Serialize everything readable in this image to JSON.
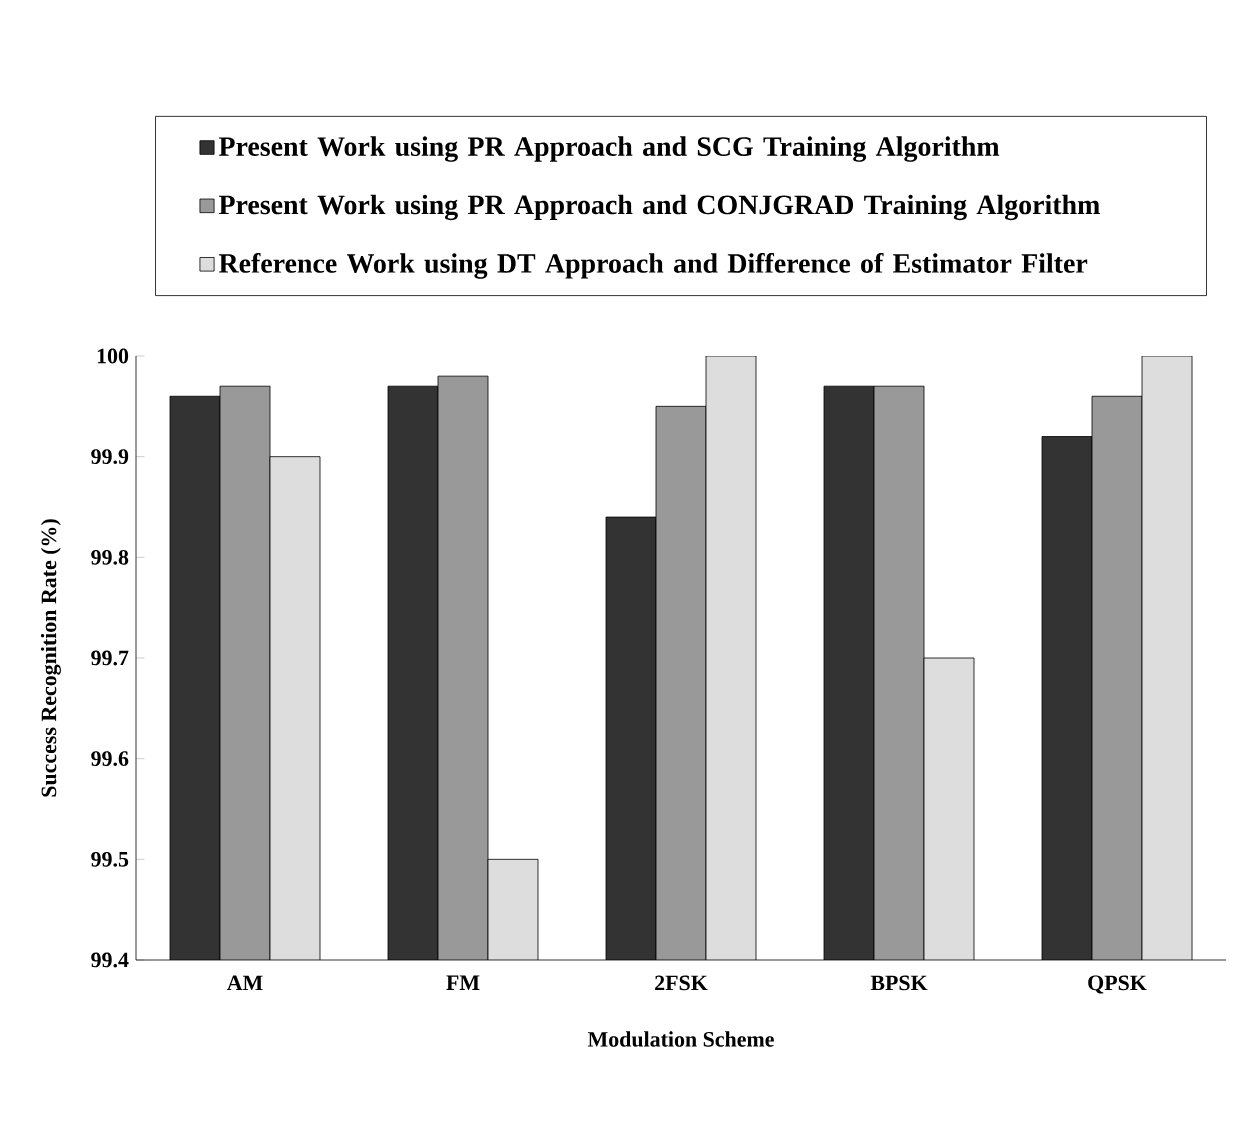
{
  "chart_data": {
    "type": "bar",
    "xlabel": "Modulation Scheme",
    "ylabel": "Success Recognition Rate (%)",
    "categories": [
      "AM",
      "FM",
      "2FSK",
      "BPSK",
      "QPSK"
    ],
    "series": [
      {
        "name": "Present Work using PR Approach and SCG Training Algorithm",
        "color": "#333333",
        "values": [
          99.96,
          99.97,
          99.84,
          99.97,
          99.92
        ]
      },
      {
        "name": "Present Work using PR Approach and CONJGRAD Training Algorithm",
        "color": "#999999",
        "values": [
          99.97,
          99.98,
          99.95,
          99.97,
          99.96
        ]
      },
      {
        "name": "Reference Work using DT Approach  and Difference of Estimator Filter",
        "color": "#dddddd",
        "values": [
          99.9,
          99.5,
          100,
          99.7,
          100
        ]
      }
    ],
    "ylim": [
      99.4,
      100
    ],
    "yticks": [
      99.4,
      99.5,
      99.6,
      99.7,
      99.8,
      99.9,
      100
    ],
    "grid": false,
    "legend": "top"
  }
}
